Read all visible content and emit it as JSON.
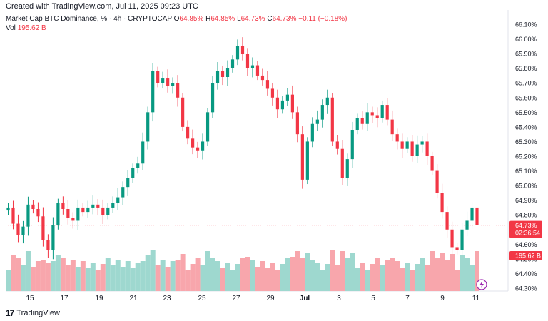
{
  "header": {
    "created_text": "Created with TradingView.com, Jul 11, 2025 09:23 UTC"
  },
  "legend": {
    "symbol": "Market Cap BTC Dominance, % · 4h · CRYPTOCAP",
    "o_label": "O",
    "o_value": "64.85%",
    "h_label": "H",
    "h_value": "64.85%",
    "l_label": "L",
    "l_value": "64.73%",
    "c_label": "C",
    "c_value": "64.73%",
    "change": "−0.11 (−0.18%)",
    "vol_label": "Vol",
    "vol_value": "195.62 B"
  },
  "footer": {
    "brand": "TradingView"
  },
  "colors": {
    "up": "#089981",
    "down": "#f23645",
    "vol_up": "#9ed8cf",
    "vol_down": "#f8a6ac"
  },
  "chart_data": {
    "type": "candlestick",
    "ylim": [
      64.3,
      66.1
    ],
    "y_ticks": [
      "66.10%",
      "66.00%",
      "65.90%",
      "65.80%",
      "65.70%",
      "65.60%",
      "65.50%",
      "65.40%",
      "65.30%",
      "65.20%",
      "65.10%",
      "65.00%",
      "64.90%",
      "64.80%",
      "64.70%",
      "64.60%",
      "64.50%",
      "64.40%",
      "64.30%"
    ],
    "x_ticks": [
      "15",
      "17",
      "19",
      "21",
      "23",
      "25",
      "27",
      "29",
      "Jul",
      "3",
      "5",
      "7",
      "9",
      "11"
    ],
    "last_price_label": "64.73%",
    "countdown_label": "02:36:54",
    "volume_label": "195.62 B",
    "closes": [
      64.85,
      64.74,
      64.66,
      64.72,
      64.87,
      64.84,
      64.79,
      64.63,
      64.56,
      64.73,
      64.88,
      64.84,
      64.78,
      64.76,
      64.85,
      64.82,
      64.85,
      64.87,
      64.85,
      64.8,
      64.85,
      64.88,
      64.92,
      64.99,
      65.05,
      65.12,
      65.15,
      65.3,
      65.5,
      65.78,
      65.7,
      65.73,
      65.68,
      65.7,
      65.6,
      65.4,
      65.32,
      65.26,
      65.24,
      65.3,
      65.5,
      65.7,
      65.78,
      65.74,
      65.8,
      65.86,
      65.95,
      65.9,
      65.8,
      65.82,
      65.75,
      65.72,
      65.66,
      65.6,
      65.52,
      65.58,
      65.62,
      65.5,
      65.35,
      65.04,
      65.3,
      65.42,
      65.45,
      65.55,
      65.6,
      65.3,
      65.25,
      65.05,
      65.18,
      65.38,
      65.46,
      65.42,
      65.5,
      65.48,
      65.46,
      65.55,
      65.45,
      65.35,
      65.3,
      65.25,
      65.3,
      65.2,
      65.28,
      65.3,
      65.2,
      65.1,
      64.95,
      64.82,
      64.7,
      64.58,
      64.56,
      64.7,
      64.76,
      64.85,
      64.73
    ]
  }
}
